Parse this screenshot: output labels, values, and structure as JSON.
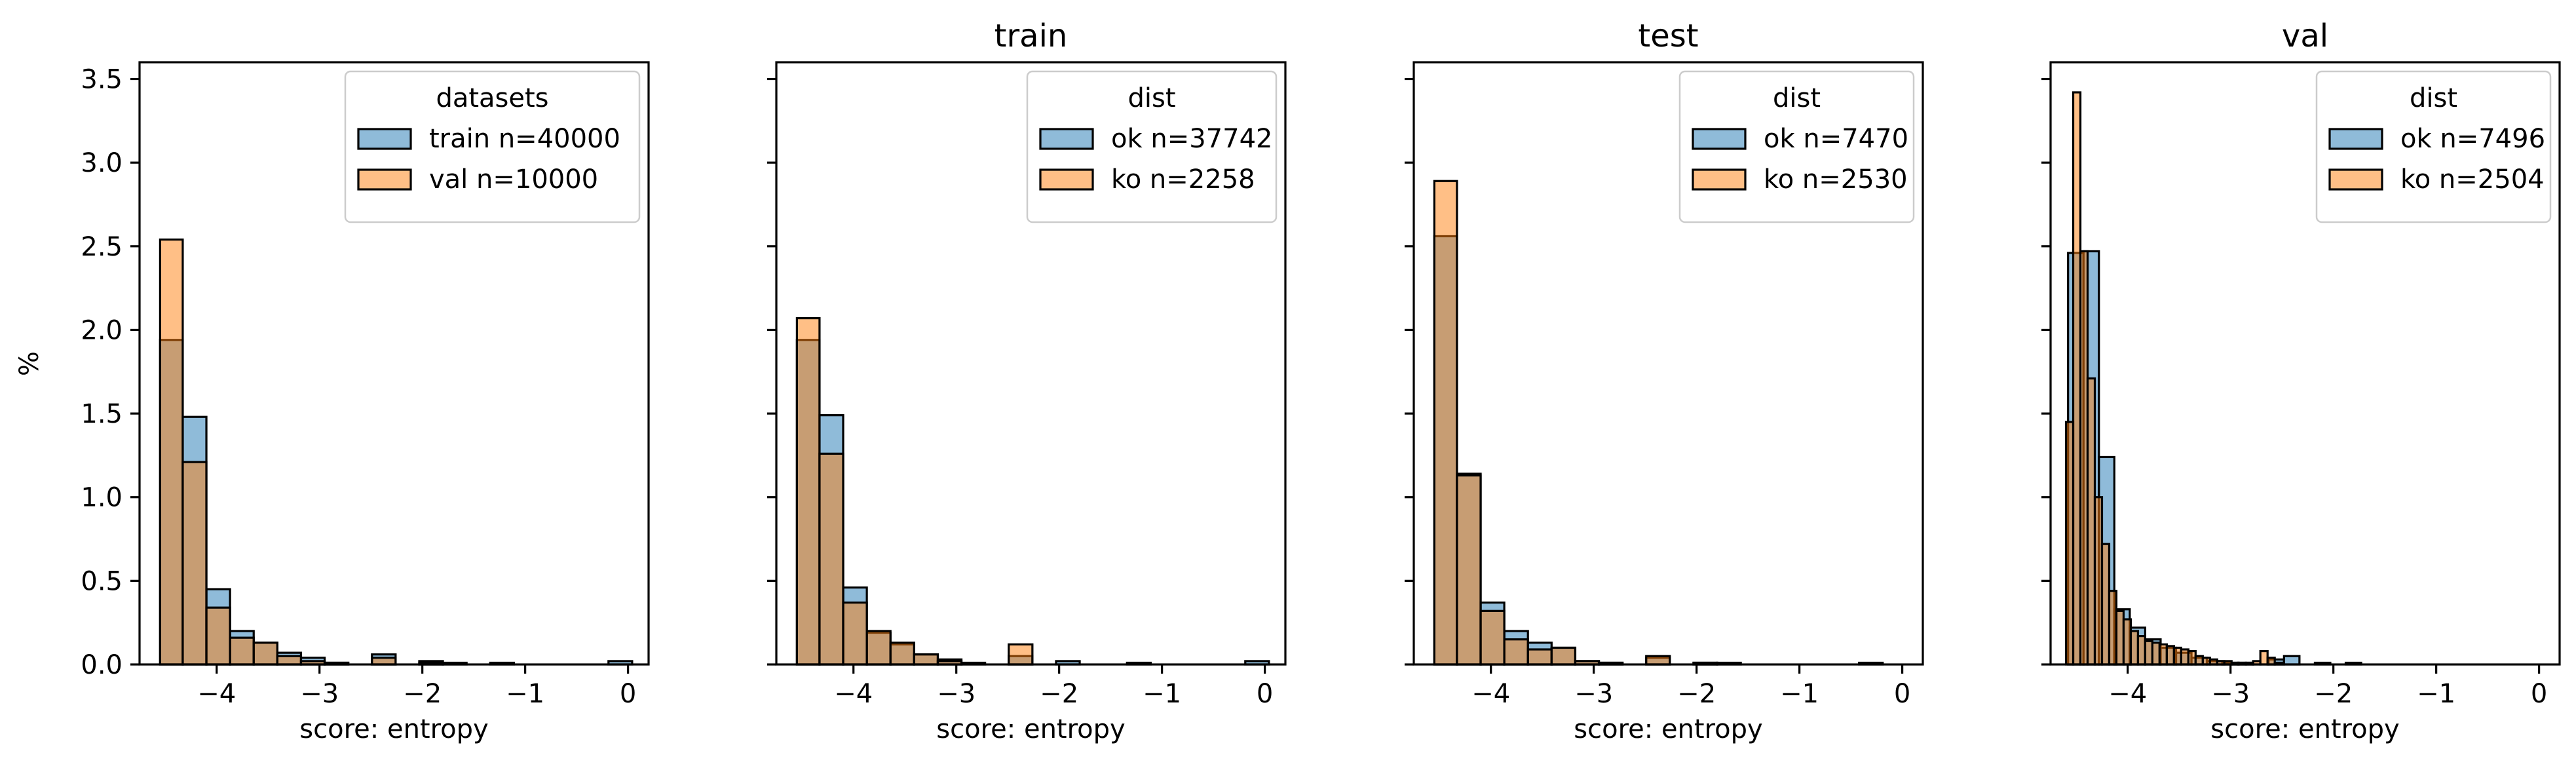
{
  "figure": {
    "ylabel": "%"
  },
  "chart_data": [
    {
      "type": "bar",
      "title": "",
      "xlabel": "score: entropy",
      "ylabel": "%",
      "xlim": [
        -4.75,
        0.2
      ],
      "ylim": [
        0,
        3.6
      ],
      "xticks": [
        -4,
        -3,
        -2,
        -1,
        0
      ],
      "yticks": [
        0.0,
        0.5,
        1.0,
        1.5,
        2.0,
        2.5,
        3.0,
        3.5
      ],
      "grid": false,
      "legend": {
        "title": "datasets",
        "placement": "top-right"
      },
      "series": [
        {
          "name": "train n=40000",
          "color": "#1f77b4",
          "bin_edges": [
            -4.55,
            -4.33,
            -4.1,
            -3.87,
            -3.64,
            -3.41,
            -3.18,
            -2.95,
            -2.72,
            -2.49,
            -2.26,
            -2.03,
            -1.8,
            -1.57,
            -1.34,
            -1.11,
            -0.88,
            -0.65,
            -0.42,
            -0.19,
            0.04
          ],
          "values": [
            1.94,
            1.48,
            0.45,
            0.2,
            0.13,
            0.07,
            0.04,
            0.01,
            0.0,
            0.06,
            0.0,
            0.02,
            0.01,
            0.0,
            0.01,
            0.0,
            0.0,
            0.0,
            0.0,
            0.02
          ]
        },
        {
          "name": "val n=10000",
          "color": "#ff7f0e",
          "bin_edges": [
            -4.55,
            -4.33,
            -4.1,
            -3.87,
            -3.64,
            -3.41,
            -3.18,
            -2.95,
            -2.72,
            -2.49,
            -2.26,
            -2.03,
            -1.8,
            -1.57,
            -1.34,
            -1.11,
            -0.88,
            -0.65,
            -0.42,
            -0.19,
            0.04
          ],
          "values": [
            2.54,
            1.21,
            0.34,
            0.16,
            0.13,
            0.05,
            0.02,
            0.01,
            0.0,
            0.04,
            0.0,
            0.01,
            0.0,
            0.0,
            0.0,
            0.0,
            0.0,
            0.0,
            0.0,
            0.0
          ]
        }
      ]
    },
    {
      "type": "bar",
      "title": "train",
      "xlabel": "score: entropy",
      "ylabel": "",
      "xlim": [
        -4.75,
        0.2
      ],
      "ylim": [
        0,
        3.6
      ],
      "xticks": [
        -4,
        -3,
        -2,
        -1,
        0
      ],
      "grid": false,
      "legend": {
        "title": "dist",
        "placement": "top-right"
      },
      "series": [
        {
          "name": "ok n=37742",
          "color": "#1f77b4",
          "bin_edges": [
            -4.55,
            -4.33,
            -4.1,
            -3.87,
            -3.64,
            -3.41,
            -3.18,
            -2.95,
            -2.72,
            -2.49,
            -2.26,
            -2.03,
            -1.8,
            -1.57,
            -1.34,
            -1.11,
            -0.88,
            -0.65,
            -0.42,
            -0.19,
            0.04
          ],
          "values": [
            1.94,
            1.49,
            0.46,
            0.19,
            0.12,
            0.06,
            0.03,
            0.01,
            0.0,
            0.05,
            0.0,
            0.02,
            0.0,
            0.0,
            0.01,
            0.0,
            0.0,
            0.0,
            0.0,
            0.02
          ]
        },
        {
          "name": "ko n=2258",
          "color": "#ff7f0e",
          "bin_edges": [
            -4.55,
            -4.33,
            -4.1,
            -3.87,
            -3.64,
            -3.41,
            -3.18,
            -2.95,
            -2.72,
            -2.49,
            -2.26,
            -2.03,
            -1.8,
            -1.57,
            -1.34,
            -1.11,
            -0.88,
            -0.65,
            -0.42,
            -0.19,
            0.04
          ],
          "values": [
            2.07,
            1.26,
            0.37,
            0.2,
            0.13,
            0.06,
            0.02,
            0.0,
            0.0,
            0.12,
            0.0,
            0.0,
            0.0,
            0.0,
            0.0,
            0.0,
            0.0,
            0.0,
            0.0,
            0.0
          ]
        }
      ]
    },
    {
      "type": "bar",
      "title": "test",
      "xlabel": "score: entropy",
      "ylabel": "",
      "xlim": [
        -4.75,
        0.2
      ],
      "ylim": [
        0,
        3.6
      ],
      "xticks": [
        -4,
        -3,
        -2,
        -1,
        0
      ],
      "grid": false,
      "legend": {
        "title": "dist",
        "placement": "top-right"
      },
      "series": [
        {
          "name": "ok n=7470",
          "color": "#1f77b4",
          "bin_edges": [
            -4.55,
            -4.33,
            -4.1,
            -3.87,
            -3.64,
            -3.41,
            -3.18,
            -2.95,
            -2.72,
            -2.49,
            -2.26,
            -2.03,
            -1.8,
            -1.57,
            -1.34,
            -1.11,
            -0.88,
            -0.65,
            -0.42,
            -0.19,
            0.04
          ],
          "values": [
            2.56,
            1.14,
            0.37,
            0.2,
            0.13,
            0.1,
            0.02,
            0.01,
            0.0,
            0.04,
            0.0,
            0.01,
            0.01,
            0.0,
            0.0,
            0.0,
            0.0,
            0.0,
            0.01,
            0.0
          ]
        },
        {
          "name": "ko n=2530",
          "color": "#ff7f0e",
          "bin_edges": [
            -4.55,
            -4.33,
            -4.1,
            -3.87,
            -3.64,
            -3.41,
            -3.18,
            -2.95,
            -2.72,
            -2.49,
            -2.26,
            -2.03,
            -1.8,
            -1.57,
            -1.34,
            -1.11,
            -0.88,
            -0.65,
            -0.42,
            -0.19,
            0.04
          ],
          "values": [
            2.89,
            1.13,
            0.32,
            0.15,
            0.09,
            0.1,
            0.02,
            0.01,
            0.0,
            0.05,
            0.0,
            0.01,
            0.0,
            0.0,
            0.0,
            0.0,
            0.0,
            0.0,
            0.0,
            0.0
          ]
        }
      ]
    },
    {
      "type": "bar",
      "title": "val",
      "xlabel": "score: entropy",
      "ylabel": "",
      "xlim": [
        -4.75,
        0.2
      ],
      "ylim": [
        0,
        3.6
      ],
      "xticks": [
        -4,
        -3,
        -2,
        -1,
        0
      ],
      "grid": false,
      "legend": {
        "title": "dist",
        "placement": "top-right"
      },
      "series": [
        {
          "name": "ok n=7496",
          "color": "#1f77b4",
          "bin_edges": [
            -4.58,
            -4.43,
            -4.28,
            -4.13,
            -3.98,
            -3.83,
            -3.68,
            -3.53,
            -3.38,
            -3.23,
            -3.08,
            -2.93,
            -2.78,
            -2.63,
            -2.48,
            -2.33,
            -2.18,
            -2.03,
            -1.88,
            -1.73
          ],
          "values": [
            2.46,
            2.47,
            1.24,
            0.33,
            0.22,
            0.15,
            0.1,
            0.07,
            0.04,
            0.02,
            0.01,
            0.01,
            0.0,
            0.03,
            0.05,
            0.0,
            0.01,
            0.0,
            0.01
          ]
        },
        {
          "name": "ko n=2504",
          "color": "#ff7f0e",
          "bin_edges": [
            -4.6,
            -4.53,
            -4.46,
            -4.39,
            -4.32,
            -4.25,
            -4.18,
            -4.11,
            -4.04,
            -3.97,
            -3.9,
            -3.83,
            -3.76,
            -3.69,
            -3.62,
            -3.55,
            -3.48,
            -3.41,
            -3.34,
            -3.27,
            -3.2,
            -3.13,
            -3.06,
            -2.99,
            -2.92,
            -2.85,
            -2.78,
            -2.71,
            -2.64,
            -2.57,
            -2.5
          ],
          "values": [
            1.45,
            3.42,
            2.47,
            1.71,
            1.0,
            0.72,
            0.44,
            0.32,
            0.27,
            0.2,
            0.17,
            0.14,
            0.13,
            0.12,
            0.11,
            0.1,
            0.09,
            0.08,
            0.05,
            0.04,
            0.03,
            0.02,
            0.02,
            0.01,
            0.01,
            0.01,
            0.02,
            0.08,
            0.04,
            0.01
          ]
        }
      ]
    }
  ]
}
